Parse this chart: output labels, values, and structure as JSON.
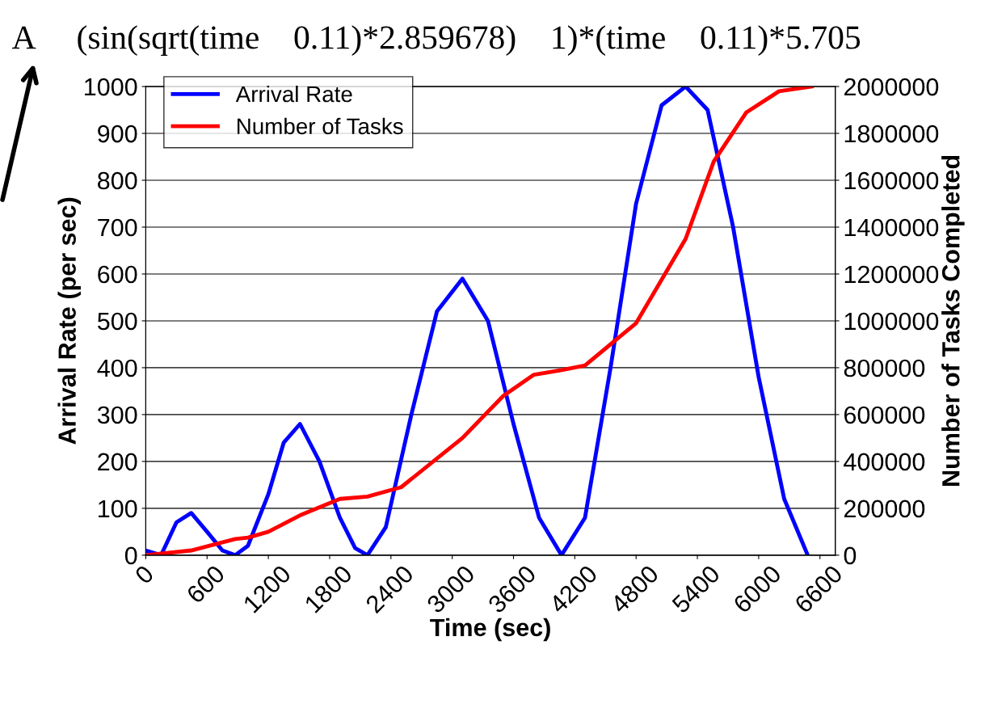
{
  "chart_data": {
    "type": "line",
    "title": "A     (sin(sqrt(time    0.11)*2.859678)    1)*(time    0.11)*5.705",
    "xlabel": "Time (sec)",
    "ylabel": "Arrival Rate (per sec)",
    "y2label": "Number of Tasks Completed",
    "xlim": [
      0,
      6750
    ],
    "xticks": [
      0,
      600,
      1200,
      1800,
      2400,
      3000,
      3600,
      4200,
      4800,
      5400,
      6000,
      6600
    ],
    "ylim": [
      0,
      1000
    ],
    "yticks": [
      0,
      100,
      200,
      300,
      400,
      500,
      600,
      700,
      800,
      900,
      1000
    ],
    "y2lim": [
      0,
      2000000
    ],
    "y2ticks": [
      0,
      200000,
      400000,
      600000,
      800000,
      1000000,
      1200000,
      1400000,
      1600000,
      1800000,
      2000000
    ],
    "grid": "y",
    "legend": "top left",
    "line_style": "solid",
    "marker": "none",
    "series": [
      {
        "name": "Arrival Rate",
        "color": "#0000ff",
        "x": [
          0,
          150,
          300,
          445,
          600,
          750,
          875,
          1000,
          1200,
          1350,
          1510,
          1700,
          1900,
          2050,
          2170,
          2350,
          2600,
          2850,
          3100,
          3350,
          3600,
          3850,
          4070,
          4300,
          4550,
          4800,
          5050,
          5285,
          5500,
          5750,
          6000,
          6250,
          6480
        ],
        "values": [
          10,
          0,
          70,
          90,
          50,
          10,
          0,
          20,
          130,
          240,
          280,
          200,
          80,
          15,
          0,
          60,
          300,
          520,
          590,
          500,
          280,
          80,
          0,
          80,
          400,
          750,
          960,
          1000,
          950,
          700,
          380,
          120,
          0
        ]
      },
      {
        "name": "Number of Tasks",
        "color": "#ff0000",
        "axis": "y2",
        "x": [
          0,
          445,
          875,
          1000,
          1200,
          1510,
          1900,
          2170,
          2500,
          3100,
          3500,
          3800,
          4070,
          4300,
          4800,
          5285,
          5560,
          5880,
          6200,
          6520
        ],
        "values": [
          0,
          20000,
          69000,
          75000,
          100000,
          170000,
          240000,
          250000,
          290000,
          500000,
          680000,
          770000,
          790000,
          810000,
          990000,
          1350000,
          1680000,
          1890000,
          1980000,
          2000000
        ]
      }
    ]
  }
}
